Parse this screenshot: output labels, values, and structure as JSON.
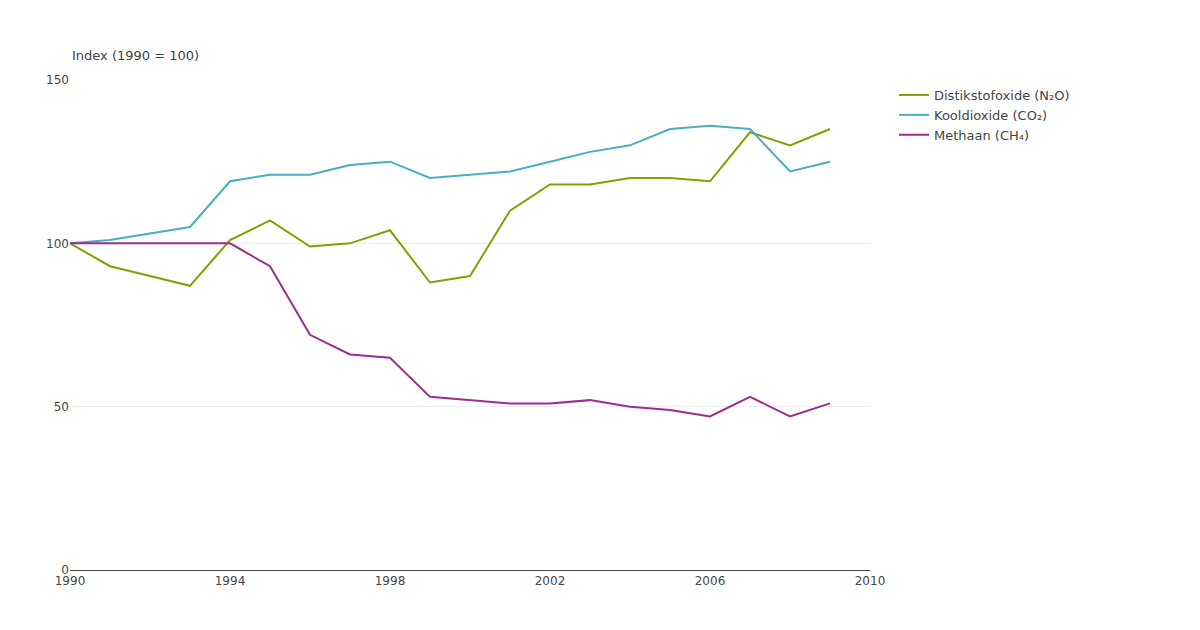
{
  "chart_data": {
    "type": "line",
    "ylabel": "Index (1990 = 100)",
    "x": [
      1990,
      1991,
      1992,
      1993,
      1994,
      1995,
      1996,
      1997,
      1998,
      1999,
      2000,
      2001,
      2002,
      2003,
      2004,
      2005,
      2006,
      2007,
      2008,
      2009
    ],
    "series": [
      {
        "name": "Distikstofoxide (N₂O)",
        "color": "#8B9B00",
        "values": [
          100,
          93,
          90,
          87,
          101,
          107,
          99,
          100,
          104,
          88,
          90,
          110,
          118,
          118,
          120,
          120,
          119,
          134,
          130,
          135
        ]
      },
      {
        "name": "Kooldioxide (CO₂)",
        "color": "#4BACC6",
        "values": [
          100,
          101,
          103,
          105,
          119,
          121,
          121,
          124,
          125,
          120,
          121,
          122,
          125,
          128,
          130,
          135,
          136,
          135,
          122,
          125
        ]
      },
      {
        "name": "Methaan (CH₄)",
        "color": "#9B2D8E",
        "values": [
          100,
          100,
          100,
          100,
          100,
          93,
          72,
          66,
          65,
          53,
          52,
          51,
          51,
          52,
          50,
          49,
          47,
          53,
          47,
          51
        ]
      }
    ],
    "xlim": [
      1990,
      2010
    ],
    "xticks": [
      1990,
      1994,
      1998,
      2002,
      2006,
      2010
    ],
    "ylim": [
      0,
      150
    ],
    "yticks": [
      0,
      50,
      100,
      150
    ],
    "grid": true,
    "legend": "right"
  }
}
